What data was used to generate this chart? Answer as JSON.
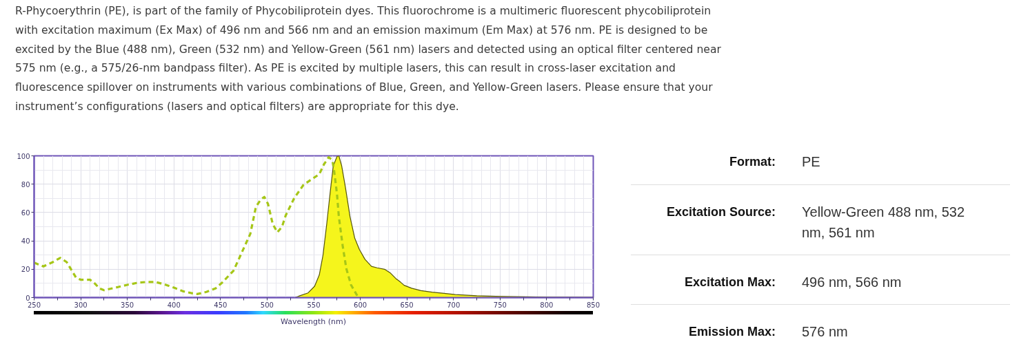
{
  "chart_data": [
    {
      "type": "line",
      "subtitle": "R-Phycoerythrin (PE), is part of the family of Phycobiliprotein dyes. This fluorochrome is a multimeric fluorescent phycobiliprotein\nwith excitation maximum (Ex Max) of 496 nm and 566 nm and an emission maximum (Em Max) at 576 nm. PE is designed to be\nexcited by the Blue (488 nm), Green (532 nm) and Yellow-Green (561 nm) lasers and detected using an optical filter centered near\n575 nm (e.g., a 575/26-nm bandpass filter). As PE is excited by multiple lasers, this can result in cross-laser excitation and\nfluorescence spillover on instruments with various combinations of Blue, Green, and Yellow-Green lasers. Please ensure that your\ninstrument’s configurations (lasers and optical filters) are appropriate for this dye.",
      "xlabel": "Wavelength (nm)",
      "xlim": [
        250,
        850
      ],
      "ylim": [
        0,
        100
      ],
      "xticks": [
        250,
        {
          "value": 275,
          "label": null
        },
        300,
        {
          "value": 325,
          "label": null
        },
        350,
        {
          "value": 375,
          "label": null
        },
        400,
        {
          "value": 425,
          "label": null
        },
        450,
        {
          "value": 475,
          "label": null
        },
        500,
        {
          "value": 525,
          "label": null
        },
        550,
        {
          "value": 575,
          "label": null
        },
        600,
        {
          "value": 625,
          "label": null
        },
        650,
        {
          "value": 675,
          "label": null
        },
        700,
        {
          "value": 725,
          "label": null
        },
        750,
        {
          "value": 775,
          "label": null
        },
        800,
        {
          "value": 825,
          "label": null
        },
        850
      ],
      "yticks": [
        0,
        20,
        40,
        60,
        80,
        100
      ],
      "grid": true,
      "series": [
        {
          "type": "area",
          "color": "#f5f51c",
          "x": [
            500,
            530,
            534,
            544,
            551,
            556,
            560,
            564,
            568,
            571,
            575,
            577,
            580,
            584,
            589,
            594,
            599,
            605,
            612,
            618,
            626,
            632,
            638,
            643,
            647,
            655,
            665,
            677,
            690,
            702,
            725,
            752,
            777,
            800,
            850
          ],
          "values": [
            0,
            0,
            1,
            3.3,
            8,
            16,
            30,
            52,
            76,
            93,
            99.5,
            100,
            93,
            78,
            57,
            42,
            34,
            27,
            22,
            21,
            20,
            17.5,
            13.5,
            11,
            8.7,
            6.6,
            4.9,
            3.8,
            3,
            2.1,
            1.3,
            0.8,
            0.5,
            0.3,
            0.2
          ]
        },
        {
          "type": "line",
          "color": "#a6c618",
          "line_style": "dashed",
          "x": [
            250,
            260,
            270,
            278,
            285,
            295,
            300,
            310,
            315,
            320,
            325,
            340,
            350,
            360,
            370,
            380,
            390,
            400,
            410,
            420,
            425,
            435,
            445,
            452,
            464,
            473,
            482,
            488,
            493,
            497,
            501,
            506,
            511,
            516,
            520,
            529,
            539,
            549,
            556,
            561,
            566,
            570,
            572,
            575,
            577,
            581,
            585,
            590,
            597,
            600
          ],
          "values": [
            24.6,
            22,
            25,
            28,
            25,
            14,
            12.6,
            12.6,
            10,
            6.5,
            5.2,
            7.4,
            9,
            10.3,
            11,
            11,
            9.3,
            7,
            4.4,
            3,
            2.5,
            4,
            6.6,
            10.7,
            19,
            32,
            45,
            64,
            69,
            71,
            66,
            52,
            46,
            50,
            58,
            70,
            79.5,
            84,
            87,
            94,
            99,
            97,
            89,
            73,
            57,
            37,
            20.5,
            9,
            1,
            0
          ]
        }
      ]
    },
    {
      "type": "other",
      "annotations": [
        "Format:",
        "PE",
        "Excitation Source:",
        "Yellow-Green 488 nm, 532 nm, 561 nm",
        "Excitation Max:",
        "496 nm, 566 nm",
        "Emission Max:",
        "576 nm"
      ]
    }
  ]
}
